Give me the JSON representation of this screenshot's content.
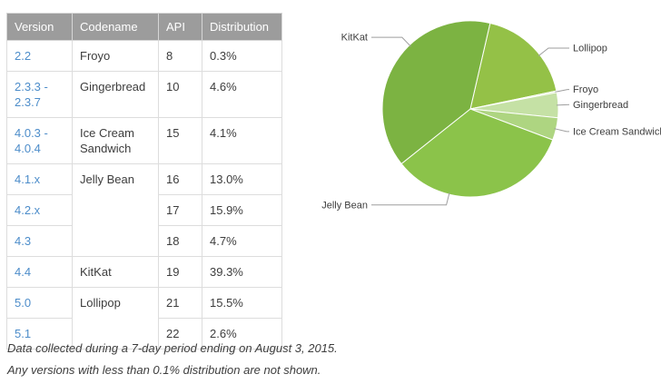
{
  "table": {
    "headers": [
      "Version",
      "Codename",
      "API",
      "Distribution"
    ],
    "rows": [
      {
        "version": [
          "2.2"
        ],
        "codename": "Froyo",
        "codename_rowspan": 1,
        "api": "8",
        "distribution": "0.3%"
      },
      {
        "version": [
          "2.3.3 -",
          "2.3.7"
        ],
        "codename": "Gingerbread",
        "codename_rowspan": 1,
        "api": "10",
        "distribution": "4.6%"
      },
      {
        "version": [
          "4.0.3 -",
          "4.0.4"
        ],
        "codename": "Ice Cream Sandwich",
        "codename_rowspan": 1,
        "api": "15",
        "distribution": "4.1%"
      },
      {
        "version": [
          "4.1.x"
        ],
        "codename": "Jelly Bean",
        "codename_rowspan": 3,
        "api": "16",
        "distribution": "13.0%"
      },
      {
        "version": [
          "4.2.x"
        ],
        "api": "17",
        "distribution": "15.9%"
      },
      {
        "version": [
          "4.3"
        ],
        "api": "18",
        "distribution": "4.7%"
      },
      {
        "version": [
          "4.4"
        ],
        "codename": "KitKat",
        "codename_rowspan": 1,
        "api": "19",
        "distribution": "39.3%"
      },
      {
        "version": [
          "5.0"
        ],
        "codename": "Lollipop",
        "codename_rowspan": 2,
        "api": "21",
        "distribution": "15.5%"
      },
      {
        "version": [
          "5.1"
        ],
        "api": "22",
        "distribution": "2.6%"
      }
    ]
  },
  "chart_data": {
    "type": "pie",
    "title": "",
    "unit": "percent",
    "start_angle_deg": 13,
    "slices": [
      {
        "label": "Lollipop",
        "value": 18.1,
        "color": "#94c147"
      },
      {
        "label": "Froyo",
        "value": 0.3,
        "color": "#dcedc8"
      },
      {
        "label": "Gingerbread",
        "value": 4.6,
        "color": "#c5e1a5"
      },
      {
        "label": "Ice Cream Sandwich",
        "value": 4.1,
        "color": "#aed581"
      },
      {
        "label": "Jelly Bean",
        "value": 33.6,
        "color": "#8bc34a"
      },
      {
        "label": "KitKat",
        "value": 39.3,
        "color": "#7cb342"
      }
    ],
    "labels_style": "leader-line callouts",
    "legend_position": "none"
  },
  "footer": {
    "line1": "Data collected during a 7-day period ending on August 3, 2015.",
    "line2": "Any versions with less than 0.1% distribution are not shown."
  },
  "colors": {
    "header_background": "#9c9c9c",
    "header_text": "#ffffff",
    "link_blue": "#4d8dca",
    "table_border": "#dddddd",
    "body_text": "#3d3d3d",
    "leader_line": "#9e9e9e"
  }
}
